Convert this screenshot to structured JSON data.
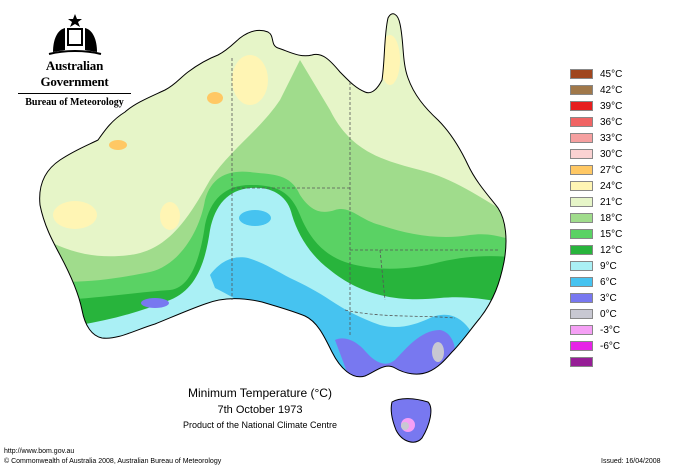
{
  "header": {
    "government": "Australian Government",
    "bureau": "Bureau of Meteorology"
  },
  "legend": [
    {
      "label": "45°C",
      "color": "#a0461e"
    },
    {
      "label": "42°C",
      "color": "#a0784a"
    },
    {
      "label": "39°C",
      "color": "#e61e1e"
    },
    {
      "label": "36°C",
      "color": "#f06464"
    },
    {
      "label": "33°C",
      "color": "#f5a0a0"
    },
    {
      "label": "30°C",
      "color": "#fad2d2"
    },
    {
      "label": "27°C",
      "color": "#ffc864"
    },
    {
      "label": "24°C",
      "color": "#fff5b4"
    },
    {
      "label": "21°C",
      "color": "#e6f5c8"
    },
    {
      "label": "18°C",
      "color": "#a0dc8c"
    },
    {
      "label": "15°C",
      "color": "#5ad264"
    },
    {
      "label": "12°C",
      "color": "#28b43c"
    },
    {
      "label": "9°C",
      "color": "#aaf0f5"
    },
    {
      "label": "6°C",
      "color": "#46c3f0"
    },
    {
      "label": "3°C",
      "color": "#7878f0"
    },
    {
      "label": "0°C",
      "color": "#c8c8d2"
    },
    {
      "label": "-3°C",
      "color": "#f5a0f5"
    },
    {
      "label": "-6°C",
      "color": "#e623e6"
    },
    {
      "label": "",
      "color": "#961e96"
    }
  ],
  "caption": {
    "title": "Minimum Temperature (°C)",
    "date": "7th October 1973",
    "product": "Product of the National Climate Centre"
  },
  "footer": {
    "url": "http://www.bom.gov.au",
    "copyright": "© Commonwealth of Australia 2008, Australian Bureau of Meteorology",
    "issued": "Issued: 16/04/2008"
  }
}
